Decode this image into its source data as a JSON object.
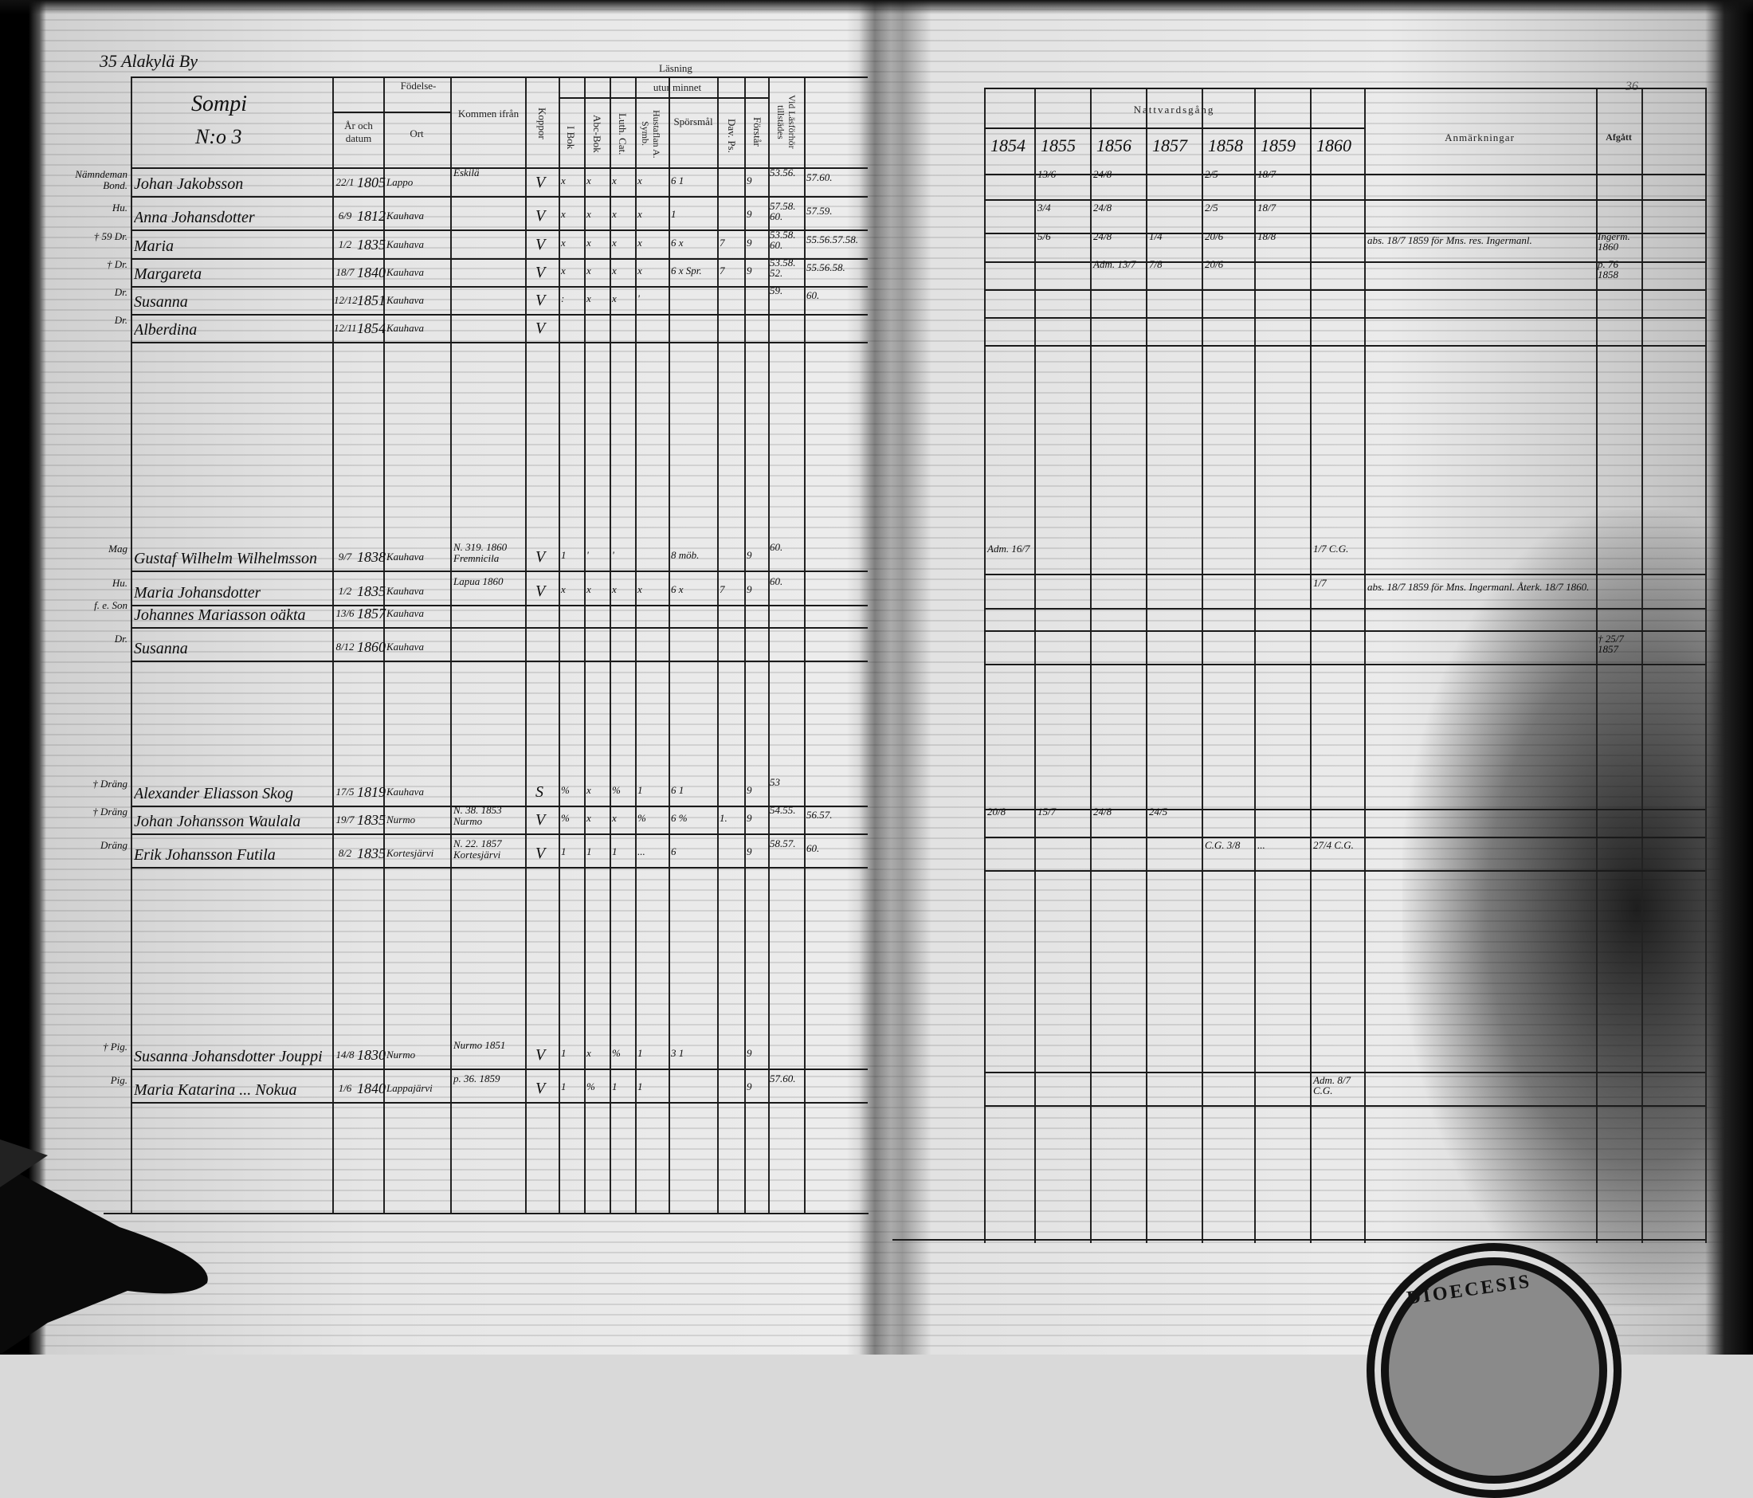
{
  "left_page": {
    "header_number": "35",
    "village": "Alakylä By",
    "farm": "Sompi",
    "farm_number": "N:o 3"
  },
  "right_page": {
    "page_marker": "36"
  },
  "headers": {
    "birth": "Födelse-",
    "birth_date": "År och datum",
    "birth_place": "Ort",
    "came_from": "Kommen ifrån",
    "smallpox": "Koppor",
    "reading": "Läsning",
    "from_memory": "utur minnet",
    "book": "I Bok",
    "abc": "Abc-Bok",
    "catechism": "Luth. Cat.",
    "symb": "Hustaflan A. Symb.",
    "questions": "Spörsmål",
    "psalms": "Dav. Ps.",
    "understands": "Förstår",
    "attendance": "Vid Läsförhör tillstädes",
    "communion": "Nattvardsgång",
    "years": [
      "1854",
      "1855",
      "1856",
      "1857",
      "1858",
      "1859",
      "1860"
    ],
    "remarks": "Anmärkningar",
    "departed": "Afgått"
  },
  "rows": [
    {
      "rank": "Nämndeman Bond.",
      "name": "Johan Jakobsson",
      "dm": "22/1",
      "year": "1805",
      "place": "Lappo",
      "from": "Eskilä",
      "kop": "V",
      "r": [
        "x",
        "x",
        "x",
        "x",
        "6 1",
        "",
        "9"
      ],
      "lasf": "53.56.",
      "extra": "57.60.",
      "c": [
        "",
        "13/6",
        "24/8",
        "",
        "2/5",
        "18/7",
        ""
      ],
      "rem": "",
      "afg": ""
    },
    {
      "rank": "Hu.",
      "name": "Anna Johansdotter",
      "dm": "6/9",
      "year": "1812",
      "place": "Kauhava",
      "from": "",
      "kop": "V",
      "r": [
        "x",
        "x",
        "x",
        "x",
        "1",
        "",
        "9"
      ],
      "lasf": "57.58. 60.",
      "extra": "57.59.",
      "c": [
        "",
        "3/4",
        "24/8",
        "",
        "2/5",
        "18/7",
        ""
      ],
      "rem": "",
      "afg": ""
    },
    {
      "rank": "† 59 Dr.",
      "name": "Maria",
      "dm": "1/2",
      "year": "1835",
      "place": "Kauhava",
      "from": "",
      "kop": "V",
      "r": [
        "x",
        "x",
        "x",
        "x",
        "6 x",
        "7",
        "9"
      ],
      "lasf": "53.58. 60.",
      "extra": "55.56.57.58.",
      "c": [
        "",
        "5/6",
        "24/8",
        "1/4",
        "20/6",
        "18/8",
        ""
      ],
      "rem": "abs. 18/7 1859 för Mns. res. Ingermanl.",
      "afg": "Ingerm. 1860"
    },
    {
      "rank": "† Dr.",
      "name": "Margareta",
      "dm": "18/7",
      "year": "1840",
      "place": "Kauhava",
      "from": "",
      "kop": "V",
      "r": [
        "x",
        "x",
        "x",
        "x",
        "6 x Spr.",
        "7",
        "9"
      ],
      "lasf": "53.58. 52.",
      "extra": "55.56.58.",
      "c": [
        "",
        "",
        "Adm. 13/7",
        "7/8",
        "20/6",
        "",
        ""
      ],
      "rem": "",
      "afg": "p. 76 1858"
    },
    {
      "rank": "Dr.",
      "name": "Susanna",
      "dm": "12/12",
      "year": "1851",
      "place": "Kauhava",
      "from": "",
      "kop": "V",
      "r": [
        ":",
        "x",
        "x",
        "'",
        "",
        "",
        ""
      ],
      "lasf": "59.",
      "extra": "60.",
      "c": [
        "",
        "",
        "",
        "",
        "",
        "",
        ""
      ],
      "rem": "",
      "afg": ""
    },
    {
      "rank": "Dr.",
      "name": "Alberdina",
      "dm": "12/11",
      "year": "1854",
      "place": "Kauhava",
      "from": "",
      "kop": "V",
      "r": [
        "",
        "",
        "",
        "",
        "",
        "",
        ""
      ],
      "lasf": "",
      "extra": "",
      "c": [
        "",
        "",
        "",
        "",
        "",
        "",
        ""
      ],
      "rem": "",
      "afg": ""
    },
    {
      "rank": "Mag",
      "name": "Gustaf Wilhelm Wilhelmsson",
      "dm": "9/7",
      "year": "1838",
      "place": "Kauhava",
      "from": "N. 319. 1860 Fremnicila",
      "kop": "V",
      "r": [
        "1",
        "'",
        "'",
        "",
        "8 möb.",
        "",
        "9"
      ],
      "lasf": "60.",
      "extra": "",
      "c": [
        "Adm. 16/7",
        "",
        "",
        "",
        "",
        "",
        "1/7 C.G."
      ],
      "rem": "",
      "afg": ""
    },
    {
      "rank": "Hu.",
      "name": "Maria Johansdotter",
      "dm": "1/2",
      "year": "1835",
      "place": "Kauhava",
      "from": "Lapua 1860",
      "kop": "V",
      "r": [
        "x",
        "x",
        "x",
        "x",
        "6 x",
        "7",
        "9"
      ],
      "lasf": "60.",
      "extra": "",
      "c": [
        "",
        "",
        "",
        "",
        "",
        "",
        "1/7"
      ],
      "rem": "abs. 18/7 1859 för Mns. Ingermanl. Återk. 18/7 1860.",
      "afg": ""
    },
    {
      "rank": "f. e. Son",
      "name": "Johannes Mariasson oäkta",
      "dm": "13/6",
      "year": "1857",
      "place": "Kauhava",
      "from": "",
      "kop": "",
      "r": [
        "",
        "",
        "",
        "",
        "",
        "",
        ""
      ],
      "lasf": "",
      "extra": "",
      "c": [
        "",
        "",
        "",
        "",
        "",
        "",
        ""
      ],
      "rem": "",
      "afg": ""
    },
    {
      "rank": "Dr.",
      "name": "Susanna",
      "dm": "8/12",
      "year": "1860",
      "place": "Kauhava",
      "from": "",
      "kop": "",
      "r": [
        "",
        "",
        "",
        "",
        "",
        "",
        ""
      ],
      "lasf": "",
      "extra": "",
      "c": [
        "",
        "",
        "",
        "",
        "",
        "",
        ""
      ],
      "rem": "",
      "afg": "† 25/7 1857"
    },
    {
      "rank": "† Dräng",
      "name": "Alexander Eliasson Skog",
      "dm": "17/5",
      "year": "1819",
      "place": "Kauhava",
      "from": "",
      "kop": "S",
      "r": [
        "%",
        "x",
        "%",
        "1",
        "6 1",
        "",
        "9"
      ],
      "lasf": "53",
      "extra": "",
      "c": [
        "",
        "",
        "",
        "",
        "",
        "",
        ""
      ],
      "rem": "",
      "afg": ""
    },
    {
      "rank": "† Dräng",
      "name": "Johan Johansson Waulala",
      "dm": "19/7",
      "year": "1835",
      "place": "Nurmo",
      "from": "N. 38. 1853 Nurmo",
      "kop": "V",
      "r": [
        "%",
        "x",
        "x",
        "%",
        "6 %",
        "1.",
        "9"
      ],
      "lasf": "54.55.",
      "extra": "56.57.",
      "c": [
        "20/8",
        "15/7",
        "24/8",
        "24/5",
        "",
        "",
        ""
      ],
      "rem": "",
      "afg": ""
    },
    {
      "rank": "Dräng",
      "name": "Erik Johansson Futila",
      "dm": "8/2",
      "year": "1835",
      "place": "Kortesjärvi",
      "from": "N. 22. 1857 Kortesjärvi",
      "kop": "V",
      "r": [
        "1",
        "1",
        "1",
        "...",
        "6",
        "",
        "9"
      ],
      "lasf": "58.57.",
      "extra": "60.",
      "c": [
        "",
        "",
        "",
        "",
        "C.G. 3/8",
        "...",
        "27/4 C.G."
      ],
      "rem": "",
      "afg": ""
    },
    {
      "rank": "† Pig.",
      "name": "Susanna Johansdotter Jouppi",
      "dm": "14/8",
      "year": "1830",
      "place": "Nurmo",
      "from": "Nurmo 1851",
      "kop": "V",
      "r": [
        "1",
        "x",
        "%",
        "1",
        "3 1",
        "",
        "9"
      ],
      "lasf": "",
      "extra": "",
      "c": [
        "",
        "",
        "",
        "",
        "",
        "",
        ""
      ],
      "rem": "",
      "afg": ""
    },
    {
      "rank": "Pig.",
      "name": "Maria Katarina ... Nokua",
      "dm": "1/6",
      "year": "1840",
      "place": "Lappajärvi",
      "from": "p. 36. 1859",
      "kop": "V",
      "r": [
        "1",
        "%",
        "1",
        "1",
        "",
        "",
        "9"
      ],
      "lasf": "57.60.",
      "extra": "",
      "c": [
        "",
        "",
        "",
        "",
        "",
        "",
        "Adm. 8/7 C.G."
      ],
      "rem": "",
      "afg": ""
    }
  ],
  "stamp": {
    "text": "DIOECESIS"
  }
}
